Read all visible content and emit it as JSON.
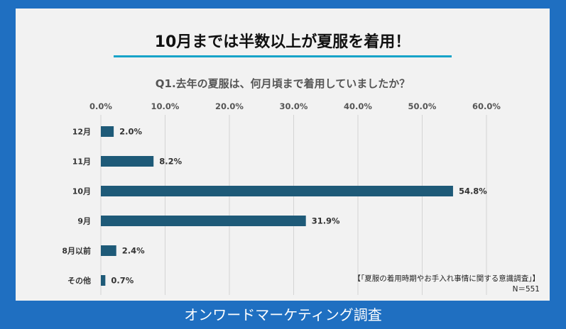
{
  "headline": "10月までは半数以上が夏服を着用！",
  "footer": "オンワードマーケティング調査",
  "source_note": "【「夏服の着用時期やお手入れ事情に関する意識調査」】",
  "sample_size": "N＝551",
  "colors": {
    "bar": "#1e5a78",
    "background": "#f2f2f2",
    "frame": "#1f6fc1",
    "accent": "#17a3c9"
  },
  "chart_data": {
    "type": "bar",
    "orientation": "horizontal",
    "title": "Q1.去年の夏服は、何月頃まで着用していましたか？",
    "categories": [
      "12月",
      "11月",
      "10月",
      "9月",
      "8月以前",
      "その他"
    ],
    "values": [
      2.0,
      8.2,
      54.8,
      31.9,
      2.4,
      0.7
    ],
    "value_labels": [
      "2.0%",
      "8.2%",
      "54.8%",
      "31.9%",
      "2.4%",
      "0.7%"
    ],
    "xlim": [
      0,
      60
    ],
    "ticks": [
      0,
      10,
      20,
      30,
      40,
      50,
      60
    ],
    "tick_labels": [
      "0.0%",
      "10.0%",
      "20.0%",
      "30.0%",
      "40.0%",
      "50.0%",
      "60.0%"
    ],
    "grid": true,
    "axis_position": "top"
  }
}
